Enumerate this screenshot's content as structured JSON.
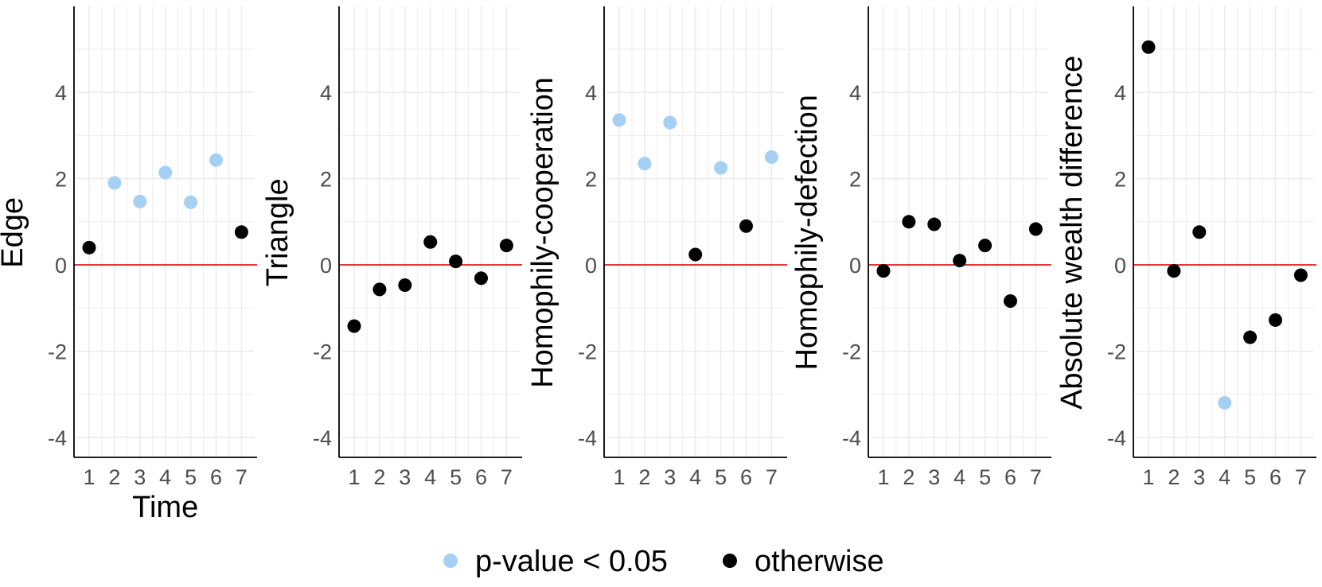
{
  "chart_data": {
    "type": "scatter",
    "x": [
      1,
      2,
      3,
      4,
      5,
      6,
      7
    ],
    "x_ticks": [
      "1",
      "2",
      "3",
      "4",
      "5",
      "6",
      "7"
    ],
    "y_ticks": [
      "-4",
      "-2",
      "0",
      "2",
      "4"
    ],
    "ylim": [
      -4.5,
      6
    ],
    "xlim": [
      0.5,
      7.5
    ],
    "xlabel": "Time",
    "reference_line": {
      "y": 0,
      "color": "#e41a1c"
    },
    "grid": true,
    "colors": {
      "significant": "#a6cff4",
      "otherwise": "#000000"
    },
    "legend": {
      "position": "bottom",
      "items": [
        {
          "label": "p-value < 0.05",
          "key": "significant"
        },
        {
          "label": "otherwise",
          "key": "otherwise"
        }
      ]
    },
    "panels": [
      {
        "ylabel": "Edge",
        "values": [
          0.4,
          1.9,
          1.47,
          2.14,
          1.45,
          2.43,
          0.76
        ],
        "significant": [
          false,
          true,
          true,
          true,
          true,
          true,
          false
        ]
      },
      {
        "ylabel": "Triangle",
        "values": [
          -1.42,
          -0.57,
          -0.47,
          0.53,
          0.08,
          -0.31,
          0.45
        ],
        "significant": [
          false,
          false,
          false,
          false,
          false,
          false,
          false
        ]
      },
      {
        "ylabel": "Homophily-cooperation",
        "values": [
          3.36,
          2.35,
          3.3,
          0.24,
          2.25,
          0.9,
          2.5
        ],
        "significant": [
          true,
          true,
          true,
          false,
          true,
          false,
          true
        ]
      },
      {
        "ylabel": "Homophily-defection",
        "values": [
          -0.14,
          1.0,
          0.94,
          0.1,
          0.45,
          -0.84,
          0.83
        ],
        "significant": [
          false,
          false,
          false,
          false,
          false,
          false,
          false
        ]
      },
      {
        "ylabel": "Absolute wealth difference",
        "values": [
          5.05,
          -0.14,
          0.76,
          -3.2,
          -1.68,
          -1.28,
          -0.24
        ],
        "significant": [
          false,
          false,
          false,
          true,
          false,
          false,
          false
        ]
      }
    ]
  }
}
